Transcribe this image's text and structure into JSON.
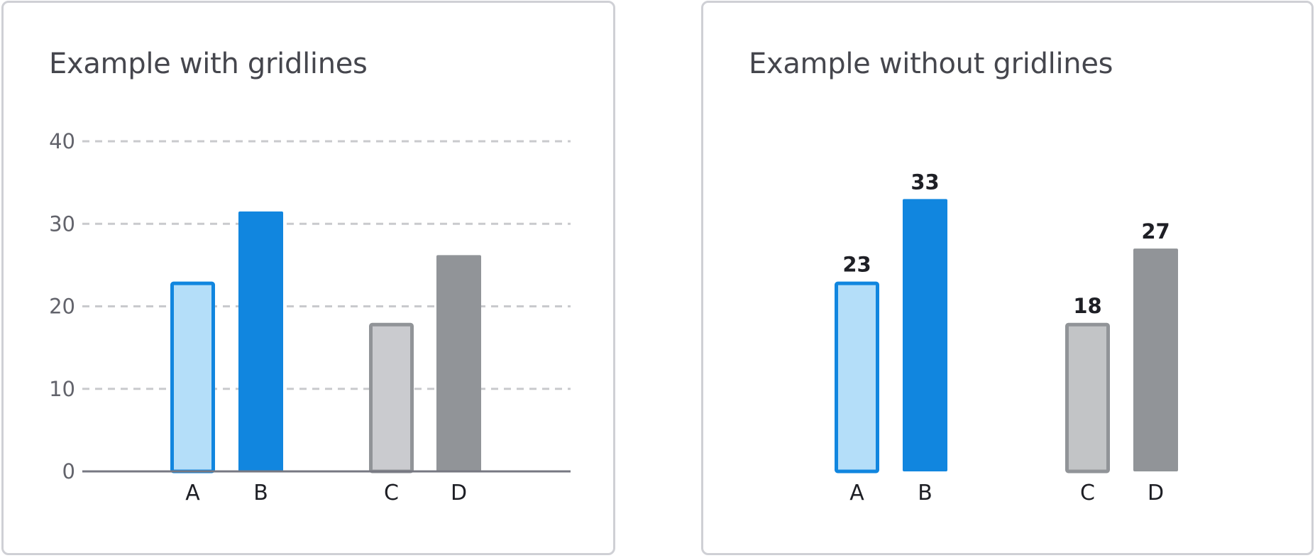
{
  "colors": {
    "blue": "#1186df",
    "blue_light": "#b4def9",
    "gray": "#919498",
    "gray_light_left": "#cacbcf",
    "gray_light_right": "#c2c4c6",
    "grid": "#c9cacd",
    "axis": "#777882"
  },
  "chart_data": [
    {
      "type": "bar",
      "title": "Example with gridlines",
      "categories": [
        "A",
        "B",
        "C",
        "D"
      ],
      "values": [
        23,
        31.5,
        18,
        26.2
      ],
      "styles": [
        "blue-outline",
        "blue",
        "gray-outline",
        "gray"
      ],
      "xlabel": "",
      "ylabel": "",
      "ylim": [
        0,
        40
      ],
      "yticks": [
        "0",
        "10",
        "20",
        "30",
        "40"
      ],
      "grid": true,
      "data_labels": []
    },
    {
      "type": "bar",
      "title": "Example without gridlines",
      "categories": [
        "A",
        "B",
        "C",
        "D"
      ],
      "values": [
        23,
        33,
        18,
        27
      ],
      "styles": [
        "blue-outline",
        "blue",
        "gray-outline",
        "gray"
      ],
      "xlabel": "",
      "ylabel": "",
      "grid": false,
      "data_labels": [
        "23",
        "33",
        "18",
        "27"
      ]
    }
  ]
}
